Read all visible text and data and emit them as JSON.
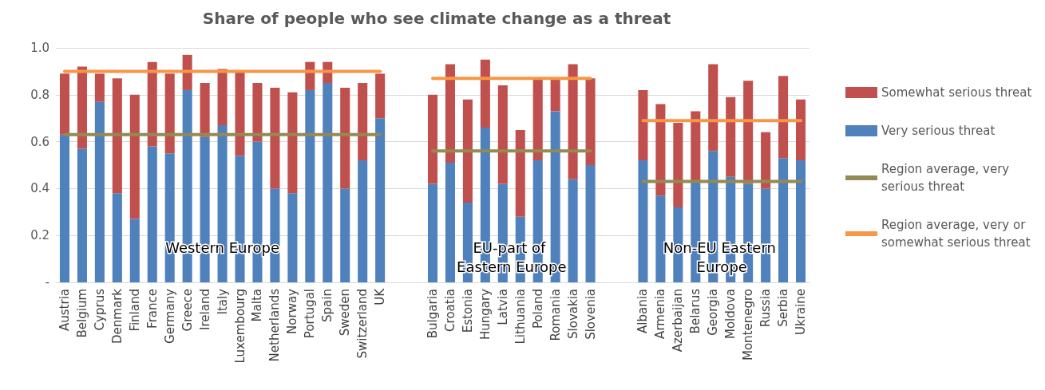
{
  "chart_data": {
    "type": "bar",
    "title": "Share of people who see climate change as a threat",
    "stacked": true,
    "grid": "y",
    "legend": "right",
    "categories": [
      "Austria",
      "Belgium",
      "Cyprus",
      "Denmark",
      "Finland",
      "France",
      "Germany",
      "Greece",
      "Ireland",
      "Italy",
      "Luxembourg",
      "Malta",
      "Netherlands",
      "Norway",
      "Portugal",
      "Spain",
      "Sweden",
      "Switzerland",
      "UK",
      null,
      null,
      "Bulgaria",
      "Croatia",
      "Estonia",
      "Hungary",
      "Latvia",
      "Lithuania",
      "Poland",
      "Romania",
      "Slovakia",
      "Slovenia",
      null,
      null,
      "Albania",
      "Armenia",
      "Azerbaijan",
      "Belarus",
      "Georgia",
      "Moldova",
      "Montenegro",
      "Russia",
      "Serbia",
      "Ukraine"
    ],
    "ylim": [
      0,
      1
    ],
    "yticks": [
      {
        "value": 0,
        "label": "-"
      },
      0.2,
      0.4,
      0.6,
      0.8,
      {
        "value": 1,
        "label": "1.0"
      }
    ],
    "series": [
      {
        "name": "Very serious threat",
        "color": "#4f81bd",
        "values": [
          0.63,
          0.57,
          0.77,
          0.38,
          0.27,
          0.58,
          0.55,
          0.82,
          0.62,
          0.67,
          0.54,
          0.6,
          0.4,
          0.38,
          0.82,
          0.85,
          0.4,
          0.52,
          0.7,
          null,
          null,
          0.42,
          0.51,
          0.34,
          0.66,
          0.42,
          0.28,
          0.52,
          0.73,
          0.44,
          0.5,
          null,
          null,
          0.52,
          0.37,
          0.32,
          0.43,
          0.56,
          0.45,
          0.42,
          0.4,
          0.53,
          0.52
        ]
      },
      {
        "name": "Somewhat serious threat",
        "color": "#c0504d",
        "values": [
          0.26,
          0.35,
          0.12,
          0.49,
          0.53,
          0.36,
          0.34,
          0.15,
          0.23,
          0.24,
          0.36,
          0.25,
          0.43,
          0.43,
          0.12,
          0.09,
          0.43,
          0.33,
          0.19,
          null,
          null,
          0.38,
          0.42,
          0.44,
          0.29,
          0.42,
          0.37,
          0.35,
          0.14,
          0.49,
          0.37,
          null,
          null,
          0.3,
          0.39,
          0.36,
          0.3,
          0.37,
          0.34,
          0.44,
          0.24,
          0.35,
          0.26
        ]
      },
      {
        "name": "Region average, very serious threat",
        "type": "line",
        "color": "#948a54",
        "values": [
          0.63,
          0.63,
          0.63,
          0.63,
          0.63,
          0.63,
          0.63,
          0.63,
          0.63,
          0.63,
          0.63,
          0.63,
          0.63,
          0.63,
          0.63,
          0.63,
          0.63,
          0.63,
          0.63,
          null,
          null,
          0.56,
          0.56,
          0.56,
          0.56,
          0.56,
          0.56,
          0.56,
          0.56,
          0.56,
          0.56,
          null,
          null,
          0.43,
          0.43,
          0.43,
          0.43,
          0.43,
          0.43,
          0.43,
          0.43,
          0.43,
          0.43
        ]
      },
      {
        "name": "Region average, very or somewhat serious threat",
        "type": "line",
        "color": "#f79646",
        "values": [
          0.9,
          0.9,
          0.9,
          0.9,
          0.9,
          0.9,
          0.9,
          0.9,
          0.9,
          0.9,
          0.9,
          0.9,
          0.9,
          0.9,
          0.9,
          0.9,
          0.9,
          0.9,
          0.9,
          null,
          null,
          0.87,
          0.87,
          0.87,
          0.87,
          0.87,
          0.87,
          0.87,
          0.87,
          0.87,
          0.87,
          null,
          null,
          0.69,
          0.69,
          0.69,
          0.69,
          0.69,
          0.69,
          0.69,
          0.69,
          0.69,
          0.69
        ]
      }
    ],
    "annotations": [
      "Western Europe",
      "EU-part of Eastern Europe",
      "Non-EU Eastern Europe"
    ]
  }
}
